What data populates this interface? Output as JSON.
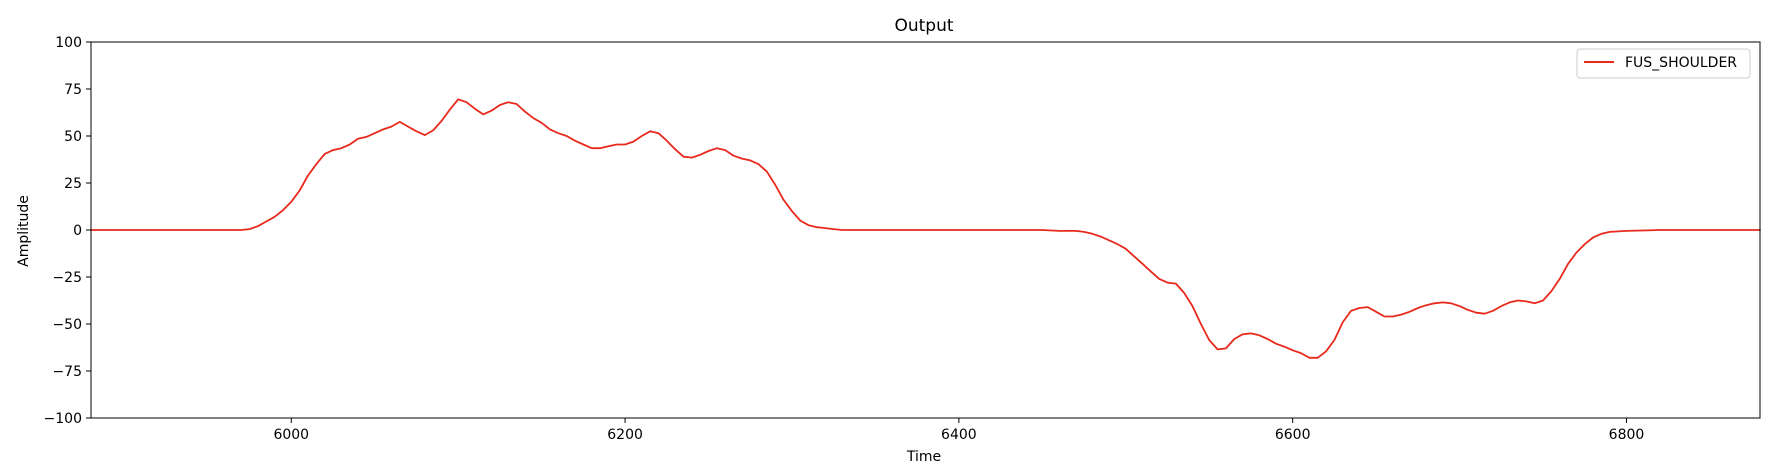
{
  "chart_data": {
    "type": "line",
    "title": "Output",
    "xlabel": "Time",
    "ylabel": "Amplitude",
    "xlim": [
      5880,
      6880
    ],
    "ylim": [
      -100,
      100
    ],
    "xticks": [
      6000,
      6200,
      6400,
      6600,
      6800
    ],
    "yticks": [
      -100,
      -75,
      -50,
      -25,
      0,
      25,
      50,
      75,
      100
    ],
    "grid": false,
    "legend_position": "top-right",
    "series": [
      {
        "name": "FUS_SHOULDER",
        "color": "#e8291c",
        "x": [
          5880,
          5900,
          5950,
          5970,
          5975,
          5980,
          5985,
          5990,
          5995,
          6000,
          6005,
          6010,
          6015,
          6020,
          6025,
          6030,
          6035,
          6040,
          6045,
          6050,
          6055,
          6060,
          6065,
          6070,
          6075,
          6080,
          6085,
          6090,
          6095,
          6100,
          6105,
          6110,
          6115,
          6120,
          6125,
          6130,
          6135,
          6140,
          6145,
          6150,
          6155,
          6160,
          6165,
          6170,
          6175,
          6180,
          6185,
          6190,
          6195,
          6200,
          6205,
          6210,
          6215,
          6220,
          6225,
          6230,
          6235,
          6240,
          6245,
          6250,
          6255,
          6260,
          6265,
          6270,
          6275,
          6280,
          6285,
          6290,
          6295,
          6300,
          6305,
          6310,
          6315,
          6320,
          6325,
          6330,
          6340,
          6350,
          6380,
          6420,
          6450,
          6460,
          6465,
          6470,
          6475,
          6480,
          6485,
          6490,
          6495,
          6500,
          6505,
          6510,
          6515,
          6520,
          6525,
          6530,
          6535,
          6540,
          6545,
          6550,
          6555,
          6560,
          6565,
          6570,
          6575,
          6580,
          6585,
          6590,
          6595,
          6600,
          6605,
          6610,
          6615,
          6620,
          6625,
          6630,
          6635,
          6640,
          6645,
          6650,
          6655,
          6660,
          6665,
          6670,
          6675,
          6680,
          6685,
          6690,
          6695,
          6700,
          6705,
          6710,
          6715,
          6720,
          6725,
          6730,
          6735,
          6740,
          6745,
          6750,
          6755,
          6760,
          6765,
          6770,
          6775,
          6780,
          6785,
          6790,
          6800,
          6820,
          6850,
          6880
        ],
        "y": [
          0,
          0,
          0,
          0,
          0.5,
          2,
          4.5,
          7,
          10.5,
          15,
          21,
          29,
          35,
          40.5,
          42.5,
          43.5,
          45.5,
          48.5,
          49.5,
          51.5,
          53.5,
          55,
          57.5,
          55,
          52.5,
          50.5,
          53,
          58,
          64,
          69.5,
          68,
          64.5,
          61.5,
          63.5,
          66.5,
          68,
          67,
          63,
          59.5,
          57,
          53.5,
          51.5,
          50,
          47.5,
          45.5,
          43.5,
          43.5,
          44.5,
          45.5,
          45.5,
          47,
          50,
          52.5,
          51.5,
          47.5,
          43,
          39,
          38.5,
          40,
          42,
          43.5,
          42.5,
          39.5,
          38,
          37,
          35,
          31,
          24,
          16,
          10,
          5,
          2.5,
          1.5,
          1,
          0.5,
          0,
          0,
          0,
          0,
          0,
          0,
          -0.5,
          -0.5,
          -0.5,
          -1,
          -2,
          -3.5,
          -5.5,
          -7.5,
          -10,
          -14,
          -18,
          -22,
          -26,
          -28,
          -28.5,
          -33.5,
          -40.5,
          -50,
          -58.5,
          -63.5,
          -63,
          -58,
          -55.5,
          -55,
          -56,
          -58,
          -60.5,
          -62,
          -64,
          -65.5,
          -68,
          -68,
          -64.5,
          -58.5,
          -49,
          -43,
          -41.5,
          -41,
          -43.5,
          -46,
          -46,
          -45,
          -43.5,
          -41.5,
          -40,
          -39,
          -38.5,
          -39,
          -40.5,
          -42.5,
          -44,
          -44.5,
          -43,
          -40.5,
          -38.5,
          -37.5,
          -38,
          -39,
          -37.5,
          -32.5,
          -26,
          -18,
          -12,
          -7.5,
          -4,
          -2,
          -1,
          -0.5,
          0,
          0,
          0
        ]
      }
    ]
  }
}
